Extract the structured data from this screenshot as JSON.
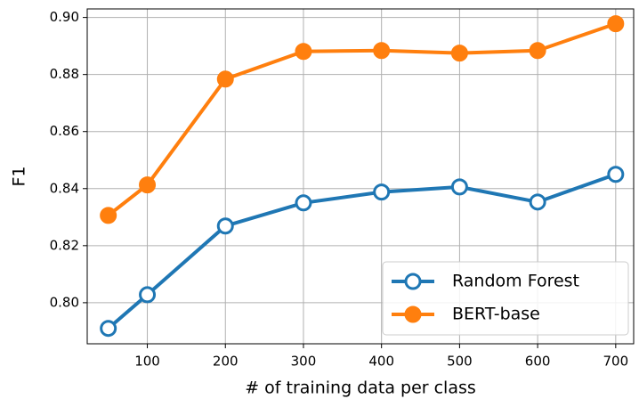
{
  "chart_data": {
    "type": "line",
    "x": [
      50,
      100,
      200,
      300,
      400,
      500,
      600,
      700
    ],
    "series": [
      {
        "name": "Random Forest",
        "color": "#1f77b4",
        "marker": "open",
        "values": [
          0.791,
          0.8028,
          0.8269,
          0.835,
          0.8388,
          0.8406,
          0.8353,
          0.845
        ]
      },
      {
        "name": "BERT-base",
        "color": "#ff7f0e",
        "marker": "filled",
        "values": [
          0.8306,
          0.8413,
          0.8784,
          0.8881,
          0.8884,
          0.8875,
          0.8884,
          0.8978
        ]
      }
    ],
    "xlabel": "# of training data per class",
    "ylabel": "F1",
    "xlim": [
      23,
      723
    ],
    "ylim": [
      0.7856,
      0.903
    ],
    "xticks": [
      100,
      200,
      300,
      400,
      500,
      600,
      700
    ],
    "yticks": [
      {
        "value": 0.8,
        "label": "0.80"
      },
      0.82,
      0.84,
      0.86,
      0.88,
      {
        "value": 0.9,
        "label": "0.90"
      }
    ],
    "grid": true,
    "legend": "lower right"
  }
}
